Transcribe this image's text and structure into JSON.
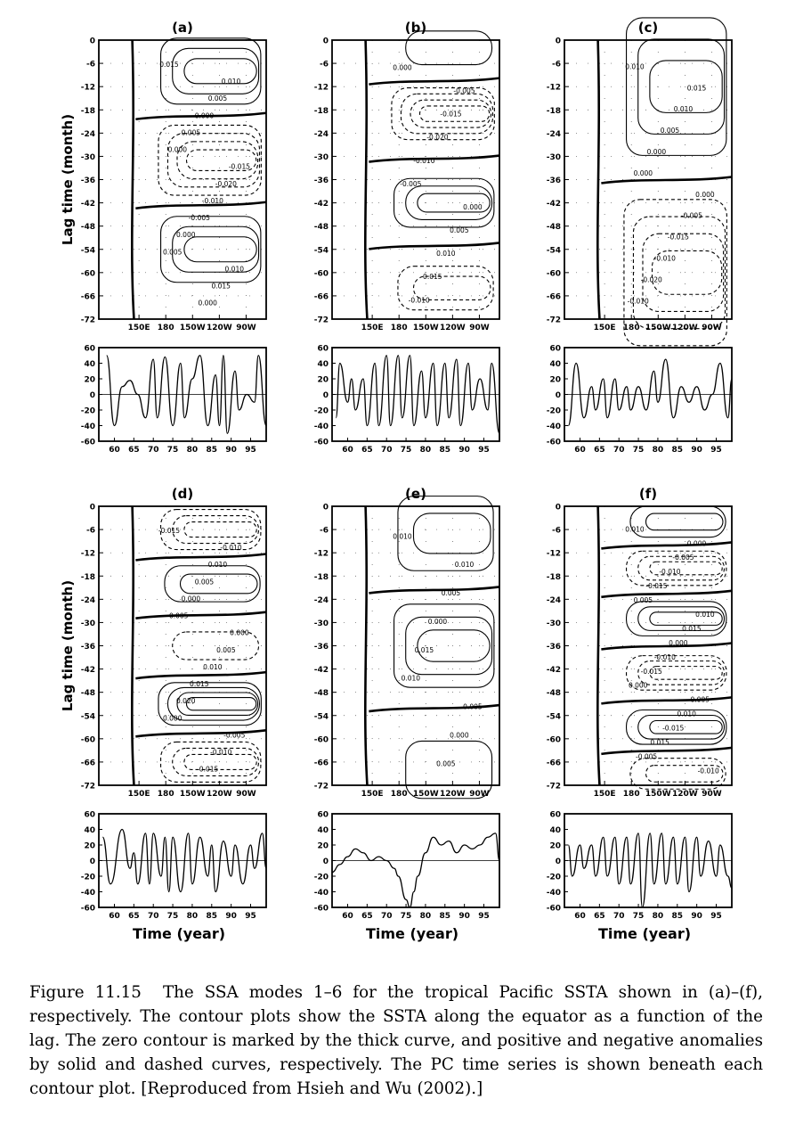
{
  "figure": {
    "ylabel": "Lag time (month)",
    "xlabel_time": "Time (year)",
    "contour_x_ticks": [
      "150E",
      "180",
      "150W",
      "120W",
      "90W"
    ],
    "contour_y_ticks": [
      "0",
      "-6",
      "-12",
      "-18",
      "-24",
      "-30",
      "-36",
      "-42",
      "-48",
      "-54",
      "-60",
      "-66",
      "-72"
    ],
    "pc_x_ticks": [
      "60",
      "65",
      "70",
      "75",
      "80",
      "85",
      "90",
      "95"
    ],
    "pc_y_ticks_a": [
      "60",
      "40",
      "20",
      "0",
      "-20",
      "-40",
      "-60"
    ],
    "pc_y_ticks_b": [
      "60",
      "40",
      "20",
      "0",
      "-20",
      "-40",
      "-60"
    ]
  },
  "caption": {
    "label": "Figure 11.15",
    "text": "The SSA modes 1–6 for the tropical Pacific SSTA shown in (a)–(f), respectively. The contour plots show the SSTA along the equator as a function of the lag. The zero contour is marked by the thick curve, and positive and negative anomalies by solid and dashed curves, respectively. The PC time series is shown beneath each contour plot. [Reproduced from Hsieh and Wu (2002).]"
  },
  "chart_data": [
    {
      "panel": "(a)",
      "type": "contour",
      "x_ticks": [
        "150E",
        "180",
        "150W",
        "120W",
        "90W"
      ],
      "ylim": [
        -72,
        0
      ],
      "ylabel": "Lag time (month)",
      "lobes": [
        {
          "lag": -8,
          "sign": "positive",
          "peak": 0.015
        },
        {
          "lag": -31,
          "sign": "negative",
          "peak": -0.02
        },
        {
          "lag": -54,
          "sign": "positive",
          "peak": 0.015
        }
      ],
      "labels": [
        "0.015",
        "0.010",
        "0.005",
        "0.000",
        "0.005",
        "0.000",
        "-0.015",
        "-0.020",
        "-0.010",
        "-0.005",
        "0.000",
        "0.005",
        "0.010",
        "0.015",
        "0.000"
      ]
    },
    {
      "panel": "(b)",
      "type": "contour",
      "x_ticks": [
        "150E",
        "180",
        "150W",
        "120W",
        "90W"
      ],
      "ylim": [
        -72,
        0
      ],
      "lobes": [
        {
          "lag": -2,
          "sign": "positive",
          "peak": 0.005
        },
        {
          "lag": -19,
          "sign": "negative",
          "peak": -0.02
        },
        {
          "lag": -42,
          "sign": "positive",
          "peak": 0.015
        },
        {
          "lag": -64,
          "sign": "negative",
          "peak": -0.01
        }
      ],
      "labels": [
        "0.000",
        "-0.005",
        "-0.015",
        "-0.020",
        "-0.010",
        "-0.005",
        "0.000",
        "0.005",
        "0.010",
        "0.015",
        "-0.010"
      ]
    },
    {
      "panel": "(c)",
      "type": "contour",
      "x_ticks": [
        "150E",
        "180",
        "150W",
        "120W",
        "90W"
      ],
      "ylim": [
        -72,
        0
      ],
      "lobes": [
        {
          "lag": -12,
          "sign": "positive",
          "peak": 0.015
        },
        {
          "lag": -60,
          "sign": "negative",
          "peak": -0.02
        }
      ],
      "labels": [
        "0.010",
        "0.015",
        "0.010",
        "0.005",
        "0.000",
        "0.000",
        "0.000",
        "-0.005",
        "-0.015",
        "-0.010",
        "-0.020",
        "-0.010"
      ]
    },
    {
      "panel": "(d)",
      "type": "contour",
      "x_ticks": [
        "150E",
        "180",
        "150W",
        "120W",
        "90W"
      ],
      "ylim": [
        -72,
        0
      ],
      "ylabel": "Lag time (month)",
      "lobes": [
        {
          "lag": -6,
          "sign": "negative",
          "peak": -0.015
        },
        {
          "lag": -20,
          "sign": "positive",
          "peak": 0.01
        },
        {
          "lag": -36,
          "sign": "negative",
          "peak": -0.005
        },
        {
          "lag": -51,
          "sign": "positive",
          "peak": 0.02
        },
        {
          "lag": -66,
          "sign": "negative",
          "peak": -0.015
        }
      ],
      "labels": [
        "-0.015",
        "-0.010",
        "0.010",
        "0.005",
        "0.000",
        "-0.005",
        "0.000",
        "0.005",
        "0.010",
        "0.015",
        "0.020",
        "0.000",
        "-0.005",
        "-0.010",
        "-0.015"
      ]
    },
    {
      "panel": "(e)",
      "type": "contour",
      "x_ticks": [
        "150E",
        "180",
        "150W",
        "120W",
        "90W"
      ],
      "ylim": [
        -72,
        0
      ],
      "lobes": [
        {
          "lag": -7,
          "sign": "positive",
          "peak": 0.01
        },
        {
          "lag": -36,
          "sign": "positive",
          "peak": 0.015
        },
        {
          "lag": -68,
          "sign": "positive",
          "peak": 0.005
        }
      ],
      "labels": [
        "0.010",
        "0.010",
        "0.005",
        "0.000",
        "0.015",
        "0.010",
        "0.005",
        "0.000",
        "0.005"
      ]
    },
    {
      "panel": "(f)",
      "type": "contour",
      "x_ticks": [
        "150E",
        "180",
        "150W",
        "120W",
        "90W"
      ],
      "ylim": [
        -72,
        0
      ],
      "lobes": [
        {
          "lag": -4,
          "sign": "positive",
          "peak": 0.01
        },
        {
          "lag": -16,
          "sign": "negative",
          "peak": -0.015
        },
        {
          "lag": -29,
          "sign": "positive",
          "peak": 0.015
        },
        {
          "lag": -43,
          "sign": "negative",
          "peak": -0.015
        },
        {
          "lag": -57,
          "sign": "positive",
          "peak": 0.015
        },
        {
          "lag": -69,
          "sign": "negative",
          "peak": -0.01
        }
      ],
      "labels": [
        "0.010",
        "0.000",
        "-0.005",
        "-0.010",
        "-0.015",
        "0.005",
        "0.010",
        "0.015",
        "0.000",
        "-0.010",
        "-0.015",
        "0.000",
        "0.005",
        "0.010",
        "-0.015",
        "0.015",
        "-0.005",
        "-0.010"
      ]
    },
    {
      "panel": "PC (a)",
      "type": "line",
      "xlim": [
        1956,
        1999
      ],
      "ylim": [
        -60,
        60
      ],
      "x_ticks": [
        60,
        65,
        70,
        75,
        80,
        85,
        90,
        95
      ],
      "peaks": [
        [
          1958,
          50
        ],
        [
          1960,
          -40
        ],
        [
          1962,
          10
        ],
        [
          1964,
          18
        ],
        [
          1966,
          0
        ],
        [
          1968,
          -30
        ],
        [
          1970,
          45
        ],
        [
          1971,
          -30
        ],
        [
          1973,
          48
        ],
        [
          1975,
          -40
        ],
        [
          1977,
          40
        ],
        [
          1978,
          -30
        ],
        [
          1980,
          20
        ],
        [
          1982,
          50
        ],
        [
          1984,
          -40
        ],
        [
          1986,
          25
        ],
        [
          1987,
          -40
        ],
        [
          1988,
          50
        ],
        [
          1989,
          -50
        ],
        [
          1991,
          30
        ],
        [
          1992,
          -20
        ],
        [
          1994,
          0
        ],
        [
          1996,
          -10
        ],
        [
          1997,
          50
        ],
        [
          1999,
          -40
        ]
      ]
    },
    {
      "panel": "PC (b)",
      "type": "line",
      "xlim": [
        1956,
        1999
      ],
      "ylim": [
        -60,
        60
      ],
      "x_ticks": [
        60,
        65,
        70,
        75,
        80,
        85,
        90,
        95
      ],
      "peaks": [
        [
          1957,
          -30
        ],
        [
          1958,
          40
        ],
        [
          1960,
          -10
        ],
        [
          1961,
          20
        ],
        [
          1962,
          -20
        ],
        [
          1964,
          20
        ],
        [
          1965,
          -40
        ],
        [
          1967,
          40
        ],
        [
          1968,
          -40
        ],
        [
          1970,
          50
        ],
        [
          1971,
          -40
        ],
        [
          1973,
          50
        ],
        [
          1974,
          -30
        ],
        [
          1976,
          50
        ],
        [
          1977,
          -40
        ],
        [
          1979,
          30
        ],
        [
          1980,
          -30
        ],
        [
          1982,
          40
        ],
        [
          1983,
          -40
        ],
        [
          1985,
          40
        ],
        [
          1986,
          -30
        ],
        [
          1988,
          45
        ],
        [
          1989,
          -40
        ],
        [
          1991,
          40
        ],
        [
          1992,
          -20
        ],
        [
          1994,
          20
        ],
        [
          1996,
          -20
        ],
        [
          1997,
          40
        ],
        [
          1999,
          -50
        ]
      ]
    },
    {
      "panel": "PC (c)",
      "type": "line",
      "xlim": [
        1956,
        1999
      ],
      "ylim": [
        -60,
        60
      ],
      "x_ticks": [
        60,
        65,
        70,
        75,
        80,
        85,
        90,
        95
      ],
      "peaks": [
        [
          1957,
          -40
        ],
        [
          1959,
          40
        ],
        [
          1961,
          -30
        ],
        [
          1963,
          10
        ],
        [
          1964,
          -20
        ],
        [
          1966,
          20
        ],
        [
          1967,
          -30
        ],
        [
          1969,
          20
        ],
        [
          1970,
          -20
        ],
        [
          1972,
          10
        ],
        [
          1973,
          -20
        ],
        [
          1975,
          10
        ],
        [
          1977,
          -20
        ],
        [
          1979,
          30
        ],
        [
          1980,
          -10
        ],
        [
          1982,
          45
        ],
        [
          1984,
          -30
        ],
        [
          1986,
          10
        ],
        [
          1988,
          -10
        ],
        [
          1990,
          10
        ],
        [
          1992,
          -20
        ],
        [
          1994,
          0
        ],
        [
          1996,
          40
        ],
        [
          1998,
          -30
        ],
        [
          1999,
          20
        ]
      ]
    },
    {
      "panel": "PC (d)",
      "type": "line",
      "xlim": [
        1956,
        1999
      ],
      "ylim": [
        -60,
        60
      ],
      "x_ticks": [
        60,
        65,
        70,
        75,
        80,
        85,
        90,
        95
      ],
      "peaks": [
        [
          1957,
          30
        ],
        [
          1959,
          -30
        ],
        [
          1962,
          40
        ],
        [
          1964,
          -10
        ],
        [
          1965,
          10
        ],
        [
          1966,
          -30
        ],
        [
          1968,
          35
        ],
        [
          1969,
          -30
        ],
        [
          1970,
          35
        ],
        [
          1972,
          -20
        ],
        [
          1973,
          30
        ],
        [
          1974,
          -40
        ],
        [
          1975,
          30
        ],
        [
          1977,
          -40
        ],
        [
          1979,
          35
        ],
        [
          1980,
          -30
        ],
        [
          1982,
          30
        ],
        [
          1984,
          -20
        ],
        [
          1985,
          20
        ],
        [
          1986,
          -40
        ],
        [
          1988,
          25
        ],
        [
          1990,
          -20
        ],
        [
          1991,
          20
        ],
        [
          1993,
          -30
        ],
        [
          1995,
          20
        ],
        [
          1996,
          -10
        ],
        [
          1998,
          35
        ],
        [
          1999,
          -10
        ]
      ]
    },
    {
      "panel": "PC (e)",
      "type": "line",
      "xlim": [
        1956,
        1999
      ],
      "ylim": [
        -60,
        60
      ],
      "x_ticks": [
        60,
        65,
        70,
        75,
        80,
        85,
        90,
        95
      ],
      "peaks": [
        [
          1956,
          -15
        ],
        [
          1958,
          -5
        ],
        [
          1960,
          5
        ],
        [
          1962,
          15
        ],
        [
          1964,
          10
        ],
        [
          1966,
          0
        ],
        [
          1968,
          5
        ],
        [
          1970,
          0
        ],
        [
          1972,
          -10
        ],
        [
          1973,
          -20
        ],
        [
          1975,
          -50
        ],
        [
          1976,
          -60
        ],
        [
          1977,
          -40
        ],
        [
          1978,
          -20
        ],
        [
          1980,
          10
        ],
        [
          1982,
          30
        ],
        [
          1984,
          20
        ],
        [
          1986,
          25
        ],
        [
          1988,
          10
        ],
        [
          1990,
          20
        ],
        [
          1992,
          15
        ],
        [
          1994,
          20
        ],
        [
          1996,
          30
        ],
        [
          1998,
          35
        ],
        [
          1999,
          0
        ]
      ]
    },
    {
      "panel": "PC (f)",
      "type": "line",
      "xlim": [
        1956,
        1999
      ],
      "ylim": [
        -60,
        60
      ],
      "x_ticks": [
        60,
        65,
        70,
        75,
        80,
        85,
        90,
        95
      ],
      "peaks": [
        [
          1957,
          20
        ],
        [
          1958,
          -20
        ],
        [
          1960,
          20
        ],
        [
          1961,
          -10
        ],
        [
          1963,
          20
        ],
        [
          1964,
          -20
        ],
        [
          1966,
          30
        ],
        [
          1967,
          -20
        ],
        [
          1969,
          30
        ],
        [
          1970,
          -30
        ],
        [
          1972,
          30
        ],
        [
          1973,
          -30
        ],
        [
          1975,
          35
        ],
        [
          1976,
          -60
        ],
        [
          1978,
          35
        ],
        [
          1979,
          -30
        ],
        [
          1981,
          35
        ],
        [
          1982,
          -30
        ],
        [
          1984,
          30
        ],
        [
          1985,
          -30
        ],
        [
          1987,
          30
        ],
        [
          1988,
          -40
        ],
        [
          1990,
          30
        ],
        [
          1991,
          -20
        ],
        [
          1993,
          25
        ],
        [
          1995,
          -20
        ],
        [
          1996,
          20
        ],
        [
          1998,
          -20
        ],
        [
          1999,
          -35
        ]
      ]
    }
  ]
}
